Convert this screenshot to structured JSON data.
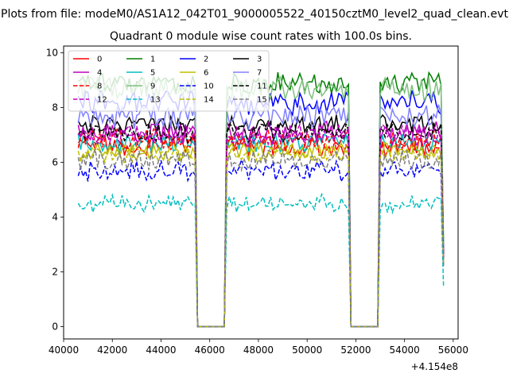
{
  "figure": {
    "suptitle": "Plots from file: modeM0/AS1A12_042T01_9000005522_40150cztM0_level2_quad_clean.evt",
    "background": "#ffffff"
  },
  "chart_data": {
    "type": "line",
    "title": "Quadrant 0 module wise count rates with 100.0s bins.",
    "xlabel": "",
    "ylabel": "",
    "x_offset_label": "+4.154e8",
    "x_offset": 415400000,
    "xlim": [
      40000,
      56200
    ],
    "ylim": [
      -0.45,
      10.25
    ],
    "x_ticks": [
      40000,
      42000,
      44000,
      46000,
      48000,
      50000,
      52000,
      54000,
      56000
    ],
    "y_ticks": [
      0,
      2,
      4,
      6,
      8,
      10
    ],
    "grid": false,
    "legend_placement": "top-left",
    "legend_columns": 4,
    "bin_width": 100,
    "segments": [
      [
        40600,
        45400
      ],
      [
        46700,
        51700
      ],
      [
        53000,
        55500
      ]
    ],
    "gaps": [
      [
        45500,
        46600
      ],
      [
        51800,
        52900
      ]
    ],
    "tail": [
      55500,
      55600
    ],
    "series": [
      {
        "name": "0",
        "color": "#ff0000",
        "dash": "solid",
        "level": 6.6,
        "noise": 0.35,
        "tail_value": 2.5
      },
      {
        "name": "1",
        "color": "#008000",
        "dash": "solid",
        "level": 8.9,
        "noise": 0.35,
        "tail_value": 3.0
      },
      {
        "name": "2",
        "color": "#0000ff",
        "dash": "solid",
        "level": 8.2,
        "noise": 0.4,
        "tail_value": 2.8
      },
      {
        "name": "3",
        "color": "#000000",
        "dash": "solid",
        "level": 7.4,
        "noise": 0.3,
        "tail_value": 2.6
      },
      {
        "name": "4",
        "color": "#bf00bf",
        "dash": "solid",
        "level": 7.1,
        "noise": 0.35,
        "tail_value": 2.6
      },
      {
        "name": "5",
        "color": "#00bfbf",
        "dash": "solid",
        "level": 6.7,
        "noise": 0.3,
        "tail_value": 2.4
      },
      {
        "name": "6",
        "color": "#bfbf00",
        "dash": "solid",
        "level": 6.4,
        "noise": 0.3,
        "tail_value": 2.3
      },
      {
        "name": "7",
        "color": "#8080ff",
        "dash": "solid",
        "level": 7.7,
        "noise": 0.4,
        "tail_value": 2.7
      },
      {
        "name": "8",
        "color": "#ff0000",
        "dash": "dashed",
        "level": 6.8,
        "noise": 0.35,
        "tail_value": 2.5
      },
      {
        "name": "9",
        "color": "#80c080",
        "dash": "solid",
        "level": 8.7,
        "noise": 0.4,
        "tail_value": 3.0
      },
      {
        "name": "10",
        "color": "#0000ff",
        "dash": "dashed",
        "level": 5.7,
        "noise": 0.35,
        "tail_value": 2.2
      },
      {
        "name": "11",
        "color": "#000000",
        "dash": "dashed",
        "level": 7.1,
        "noise": 0.35,
        "tail_value": 2.5
      },
      {
        "name": "12",
        "color": "#bf00bf",
        "dash": "dashed",
        "level": 7.0,
        "noise": 0.35,
        "tail_value": 2.5
      },
      {
        "name": "13",
        "color": "#00bfbf",
        "dash": "dashed",
        "level": 4.5,
        "noise": 0.3,
        "tail_value": 1.5
      },
      {
        "name": "14",
        "color": "#bfbf00",
        "dash": "dashed",
        "level": 6.3,
        "noise": 0.3,
        "tail_value": 2.3
      },
      {
        "name": "15",
        "color": "#808080",
        "dash": "dashed",
        "level": 6.1,
        "noise": 0.35,
        "tail_value": 2.2
      }
    ]
  }
}
